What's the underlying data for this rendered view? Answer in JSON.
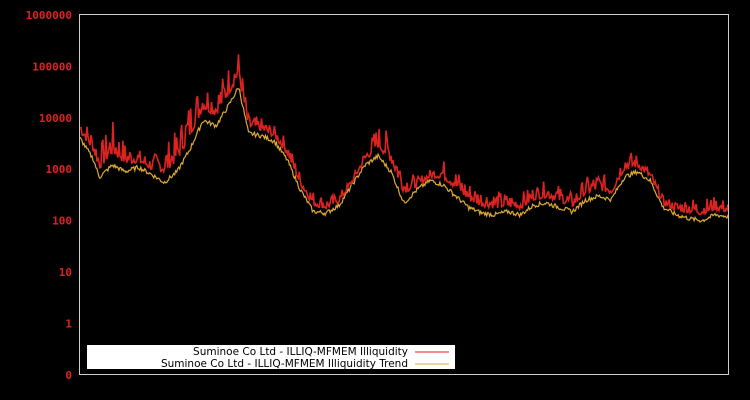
{
  "chart_data": {
    "type": "line",
    "title": "",
    "xlabel": "",
    "ylabel": "",
    "yscale": "log",
    "y_tick_labels": [
      "1000000",
      "100000",
      "10000",
      "1000",
      "100",
      "10",
      "1",
      "0"
    ],
    "y_tick_values": [
      1000000,
      100000,
      10000,
      1000,
      100,
      10,
      1,
      0
    ],
    "x_tick_labels": [],
    "grid": false,
    "legend_position": "lower-left",
    "background": "#000000",
    "axis_color": "#cccccc",
    "tick_label_color": "#dd2222",
    "series": [
      {
        "name": "Suminoe Co Ltd - ILLIQ-MFMEM Illiquidity",
        "color": "#dd2222",
        "note": "approximate values read across the x-range (fraction of width 0..1)",
        "x": [
          0.0,
          0.02,
          0.03,
          0.05,
          0.07,
          0.09,
          0.11,
          0.13,
          0.15,
          0.17,
          0.19,
          0.21,
          0.23,
          0.245,
          0.26,
          0.28,
          0.3,
          0.32,
          0.34,
          0.36,
          0.38,
          0.4,
          0.42,
          0.44,
          0.46,
          0.48,
          0.5,
          0.52,
          0.54,
          0.56,
          0.58,
          0.6,
          0.62,
          0.64,
          0.66,
          0.68,
          0.7,
          0.72,
          0.74,
          0.76,
          0.78,
          0.8,
          0.82,
          0.84,
          0.86,
          0.88,
          0.9,
          0.92,
          0.94,
          0.96,
          0.98,
          1.0
        ],
        "values": [
          12000,
          6000,
          3000,
          9000,
          3500,
          2500,
          1800,
          3000,
          6000,
          25000,
          60000,
          40000,
          120000,
          220000,
          12000,
          10000,
          7000,
          4000,
          900,
          400,
          300,
          350,
          700,
          2500,
          8000,
          5000,
          1200,
          700,
          1000,
          1600,
          1100,
          600,
          450,
          400,
          350,
          350,
          500,
          600,
          500,
          350,
          700,
          900,
          700,
          2500,
          2000,
          1000,
          300,
          250,
          300,
          280,
          300,
          250
        ]
      },
      {
        "name": "Suminoe Co Ltd - ILLIQ-MFMEM Illiquidity Trend",
        "color": "#ddaa33",
        "x": [
          0.0,
          0.02,
          0.03,
          0.05,
          0.07,
          0.09,
          0.11,
          0.13,
          0.15,
          0.17,
          0.19,
          0.21,
          0.23,
          0.245,
          0.26,
          0.28,
          0.3,
          0.32,
          0.34,
          0.36,
          0.38,
          0.4,
          0.42,
          0.44,
          0.46,
          0.48,
          0.5,
          0.52,
          0.54,
          0.56,
          0.58,
          0.6,
          0.62,
          0.64,
          0.66,
          0.68,
          0.7,
          0.72,
          0.74,
          0.76,
          0.78,
          0.8,
          0.82,
          0.84,
          0.86,
          0.88,
          0.9,
          0.92,
          0.94,
          0.96,
          0.98,
          1.0
        ],
        "values": [
          4000,
          1600,
          700,
          1200,
          900,
          1100,
          800,
          550,
          900,
          2500,
          9000,
          7000,
          18000,
          40000,
          5000,
          4500,
          3500,
          1500,
          400,
          150,
          140,
          200,
          500,
          1200,
          1800,
          900,
          220,
          400,
          600,
          500,
          300,
          180,
          140,
          130,
          150,
          130,
          200,
          220,
          180,
          150,
          250,
          300,
          260,
          700,
          900,
          600,
          180,
          130,
          110,
          100,
          130,
          120
        ]
      }
    ]
  },
  "legend": {
    "items": [
      {
        "label": "Suminoe Co Ltd - ILLIQ-MFMEM Illiquidity",
        "color": "#dd2222"
      },
      {
        "label": "Suminoe Co Ltd - ILLIQ-MFMEM Illiquidity Trend",
        "color": "#ddaa33"
      }
    ]
  }
}
